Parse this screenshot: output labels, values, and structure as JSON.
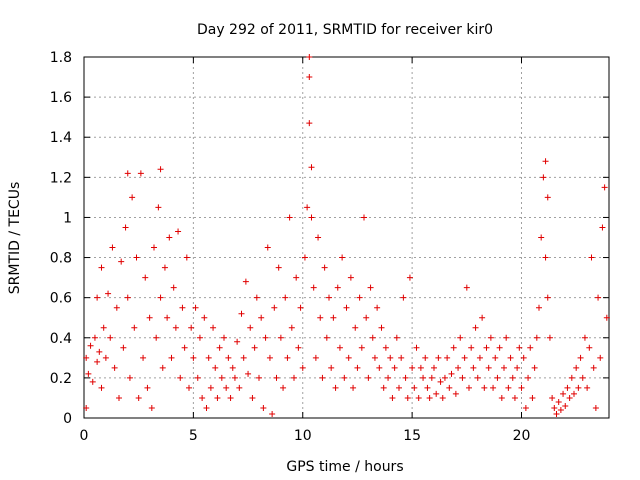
{
  "chart_data": {
    "type": "scatter",
    "title": "Day 292 of 2011, SRMTID for receiver kir0",
    "xlabel": "GPS time / hours",
    "ylabel": "SRMTID / TECUs",
    "xlim": [
      0,
      24
    ],
    "ylim": [
      0,
      1.8
    ],
    "xticks": [
      0,
      5,
      10,
      15,
      20
    ],
    "yticks": [
      0,
      0.2,
      0.4,
      0.6,
      0.8,
      1,
      1.2,
      1.4,
      1.6,
      1.8
    ],
    "xtick_labels": [
      "0",
      "5",
      "10",
      "15",
      "20"
    ],
    "ytick_labels": [
      "0",
      "0.2",
      "0.4",
      "0.6",
      "0.8",
      "1",
      "1.2",
      "1.4",
      "1.6",
      "1.8"
    ],
    "grid": true,
    "marker": "+",
    "color": "#e00000",
    "series": [
      {
        "name": "SRMTID",
        "points": [
          [
            0.1,
            0.05
          ],
          [
            0.1,
            0.3
          ],
          [
            0.2,
            0.22
          ],
          [
            0.3,
            0.36
          ],
          [
            0.4,
            0.18
          ],
          [
            0.5,
            0.4
          ],
          [
            0.6,
            0.28
          ],
          [
            0.6,
            0.6
          ],
          [
            0.7,
            0.33
          ],
          [
            0.8,
            0.15
          ],
          [
            0.8,
            0.75
          ],
          [
            0.9,
            0.45
          ],
          [
            1.0,
            0.3
          ],
          [
            1.1,
            0.62
          ],
          [
            1.2,
            0.4
          ],
          [
            1.3,
            0.85
          ],
          [
            1.4,
            0.25
          ],
          [
            1.5,
            0.55
          ],
          [
            1.6,
            0.1
          ],
          [
            1.7,
            0.78
          ],
          [
            1.8,
            0.35
          ],
          [
            1.9,
            0.95
          ],
          [
            2.0,
            0.6
          ],
          [
            2.0,
            1.22
          ],
          [
            2.1,
            0.2
          ],
          [
            2.2,
            1.1
          ],
          [
            2.3,
            0.45
          ],
          [
            2.4,
            0.8
          ],
          [
            2.5,
            0.1
          ],
          [
            2.6,
            1.22
          ],
          [
            2.7,
            0.3
          ],
          [
            2.8,
            0.7
          ],
          [
            2.9,
            0.15
          ],
          [
            3.0,
            0.5
          ],
          [
            3.1,
            0.05
          ],
          [
            3.2,
            0.85
          ],
          [
            3.3,
            0.4
          ],
          [
            3.4,
            1.05
          ],
          [
            3.5,
            0.6
          ],
          [
            3.5,
            1.24
          ],
          [
            3.6,
            0.25
          ],
          [
            3.7,
            0.75
          ],
          [
            3.8,
            0.5
          ],
          [
            3.9,
            0.9
          ],
          [
            4.0,
            0.3
          ],
          [
            4.1,
            0.65
          ],
          [
            4.2,
            0.45
          ],
          [
            4.3,
            0.93
          ],
          [
            4.4,
            0.2
          ],
          [
            4.5,
            0.55
          ],
          [
            4.6,
            0.35
          ],
          [
            4.7,
            0.8
          ],
          [
            4.8,
            0.15
          ],
          [
            4.9,
            0.45
          ],
          [
            5.0,
            0.3
          ],
          [
            5.1,
            0.55
          ],
          [
            5.2,
            0.2
          ],
          [
            5.3,
            0.4
          ],
          [
            5.4,
            0.1
          ],
          [
            5.5,
            0.5
          ],
          [
            5.6,
            0.05
          ],
          [
            5.7,
            0.3
          ],
          [
            5.8,
            0.15
          ],
          [
            5.9,
            0.45
          ],
          [
            6.0,
            0.25
          ],
          [
            6.1,
            0.1
          ],
          [
            6.2,
            0.35
          ],
          [
            6.3,
            0.2
          ],
          [
            6.4,
            0.4
          ],
          [
            6.5,
            0.15
          ],
          [
            6.6,
            0.3
          ],
          [
            6.7,
            0.1
          ],
          [
            6.8,
            0.25
          ],
          [
            6.9,
            0.2
          ],
          [
            7.0,
            0.38
          ],
          [
            7.1,
            0.15
          ],
          [
            7.2,
            0.52
          ],
          [
            7.3,
            0.3
          ],
          [
            7.4,
            0.68
          ],
          [
            7.5,
            0.22
          ],
          [
            7.6,
            0.45
          ],
          [
            7.7,
            0.1
          ],
          [
            7.8,
            0.35
          ],
          [
            7.9,
            0.6
          ],
          [
            8.0,
            0.2
          ],
          [
            8.1,
            0.5
          ],
          [
            8.2,
            0.05
          ],
          [
            8.3,
            0.4
          ],
          [
            8.4,
            0.85
          ],
          [
            8.5,
            0.3
          ],
          [
            8.6,
            0.02
          ],
          [
            8.7,
            0.55
          ],
          [
            8.8,
            0.2
          ],
          [
            8.9,
            0.75
          ],
          [
            9.0,
            0.4
          ],
          [
            9.1,
            0.15
          ],
          [
            9.2,
            0.6
          ],
          [
            9.3,
            0.3
          ],
          [
            9.4,
            1.0
          ],
          [
            9.5,
            0.45
          ],
          [
            9.6,
            0.2
          ],
          [
            9.7,
            0.7
          ],
          [
            9.8,
            0.35
          ],
          [
            9.9,
            0.55
          ],
          [
            10.0,
            0.25
          ],
          [
            10.1,
            0.8
          ],
          [
            10.2,
            1.05
          ],
          [
            10.3,
            1.8
          ],
          [
            10.3,
            1.7
          ],
          [
            10.3,
            1.47
          ],
          [
            10.4,
            1.25
          ],
          [
            10.4,
            1.0
          ],
          [
            10.5,
            0.65
          ],
          [
            10.6,
            0.3
          ],
          [
            10.7,
            0.9
          ],
          [
            10.8,
            0.5
          ],
          [
            10.9,
            0.2
          ],
          [
            11.0,
            0.75
          ],
          [
            11.1,
            0.4
          ],
          [
            11.2,
            0.6
          ],
          [
            11.3,
            0.25
          ],
          [
            11.4,
            0.5
          ],
          [
            11.5,
            0.15
          ],
          [
            11.6,
            0.65
          ],
          [
            11.7,
            0.35
          ],
          [
            11.8,
            0.8
          ],
          [
            11.9,
            0.2
          ],
          [
            12.0,
            0.55
          ],
          [
            12.1,
            0.3
          ],
          [
            12.2,
            0.7
          ],
          [
            12.3,
            0.15
          ],
          [
            12.4,
            0.45
          ],
          [
            12.5,
            0.25
          ],
          [
            12.6,
            0.6
          ],
          [
            12.7,
            0.35
          ],
          [
            12.8,
            1.0
          ],
          [
            12.9,
            0.5
          ],
          [
            13.0,
            0.2
          ],
          [
            13.1,
            0.65
          ],
          [
            13.2,
            0.4
          ],
          [
            13.3,
            0.3
          ],
          [
            13.4,
            0.55
          ],
          [
            13.5,
            0.25
          ],
          [
            13.6,
            0.45
          ],
          [
            13.7,
            0.15
          ],
          [
            13.8,
            0.35
          ],
          [
            13.9,
            0.2
          ],
          [
            14.0,
            0.3
          ],
          [
            14.1,
            0.1
          ],
          [
            14.2,
            0.25
          ],
          [
            14.3,
            0.4
          ],
          [
            14.4,
            0.15
          ],
          [
            14.5,
            0.3
          ],
          [
            14.6,
            0.6
          ],
          [
            14.7,
            0.2
          ],
          [
            14.8,
            0.1
          ],
          [
            14.9,
            0.7
          ],
          [
            15.0,
            0.25
          ],
          [
            15.1,
            0.15
          ],
          [
            15.2,
            0.35
          ],
          [
            15.3,
            0.1
          ],
          [
            15.4,
            0.25
          ],
          [
            15.5,
            0.2
          ],
          [
            15.6,
            0.3
          ],
          [
            15.7,
            0.15
          ],
          [
            15.8,
            0.1
          ],
          [
            15.9,
            0.2
          ],
          [
            16.0,
            0.25
          ],
          [
            16.1,
            0.12
          ],
          [
            16.2,
            0.3
          ],
          [
            16.3,
            0.18
          ],
          [
            16.4,
            0.1
          ],
          [
            16.5,
            0.2
          ],
          [
            16.6,
            0.3
          ],
          [
            16.7,
            0.15
          ],
          [
            16.8,
            0.22
          ],
          [
            16.9,
            0.35
          ],
          [
            17.0,
            0.12
          ],
          [
            17.1,
            0.25
          ],
          [
            17.2,
            0.4
          ],
          [
            17.3,
            0.2
          ],
          [
            17.4,
            0.3
          ],
          [
            17.5,
            0.65
          ],
          [
            17.6,
            0.15
          ],
          [
            17.7,
            0.35
          ],
          [
            17.8,
            0.25
          ],
          [
            17.9,
            0.45
          ],
          [
            18.0,
            0.2
          ],
          [
            18.1,
            0.3
          ],
          [
            18.2,
            0.5
          ],
          [
            18.3,
            0.15
          ],
          [
            18.4,
            0.35
          ],
          [
            18.5,
            0.25
          ],
          [
            18.6,
            0.4
          ],
          [
            18.7,
            0.15
          ],
          [
            18.8,
            0.3
          ],
          [
            18.9,
            0.2
          ],
          [
            19.0,
            0.35
          ],
          [
            19.1,
            0.1
          ],
          [
            19.2,
            0.25
          ],
          [
            19.3,
            0.4
          ],
          [
            19.4,
            0.15
          ],
          [
            19.5,
            0.3
          ],
          [
            19.6,
            0.2
          ],
          [
            19.7,
            0.1
          ],
          [
            19.8,
            0.25
          ],
          [
            19.9,
            0.35
          ],
          [
            20.0,
            0.15
          ],
          [
            20.1,
            0.3
          ],
          [
            20.2,
            0.05
          ],
          [
            20.3,
            0.2
          ],
          [
            20.4,
            0.35
          ],
          [
            20.5,
            0.1
          ],
          [
            20.6,
            0.25
          ],
          [
            20.7,
            0.4
          ],
          [
            20.8,
            0.55
          ],
          [
            20.9,
            0.9
          ],
          [
            21.0,
            1.2
          ],
          [
            21.1,
            1.28
          ],
          [
            21.1,
            0.8
          ],
          [
            21.2,
            1.1
          ],
          [
            21.2,
            0.6
          ],
          [
            21.3,
            0.4
          ],
          [
            21.4,
            0.1
          ],
          [
            21.5,
            0.05
          ],
          [
            21.6,
            0.02
          ],
          [
            21.7,
            0.08
          ],
          [
            21.8,
            0.04
          ],
          [
            21.9,
            0.12
          ],
          [
            22.0,
            0.06
          ],
          [
            22.1,
            0.15
          ],
          [
            22.2,
            0.1
          ],
          [
            22.3,
            0.2
          ],
          [
            22.4,
            0.12
          ],
          [
            22.5,
            0.25
          ],
          [
            22.6,
            0.15
          ],
          [
            22.7,
            0.3
          ],
          [
            22.8,
            0.2
          ],
          [
            22.9,
            0.4
          ],
          [
            23.0,
            0.15
          ],
          [
            23.1,
            0.35
          ],
          [
            23.2,
            0.8
          ],
          [
            23.3,
            0.25
          ],
          [
            23.4,
            0.05
          ],
          [
            23.5,
            0.6
          ],
          [
            23.6,
            0.3
          ],
          [
            23.7,
            0.95
          ],
          [
            23.8,
            1.15
          ],
          [
            23.9,
            0.5
          ]
        ]
      }
    ]
  }
}
